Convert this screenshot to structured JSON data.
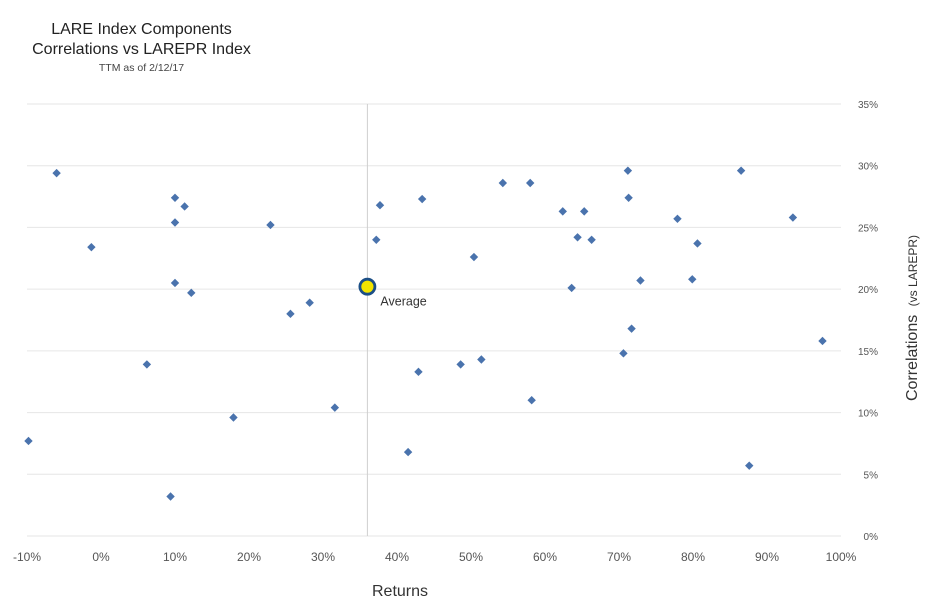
{
  "chart_data": {
    "type": "scatter",
    "title_line1": "LARE Index Components",
    "title_line2": "Correlations vs LAREPR Index",
    "subtitle": "TTM as of 2/12/17",
    "xlabel": "Returns",
    "ylabel_main": "Correlations",
    "ylabel_sub": "(vs LAREPR)",
    "xlim": [
      -10,
      100
    ],
    "ylim": [
      0,
      35
    ],
    "xticks": [
      "-10%",
      "0%",
      "10%",
      "20%",
      "30%",
      "40%",
      "50%",
      "60%",
      "70%",
      "80%",
      "90%",
      "100%"
    ],
    "yticks": [
      "0%",
      "5%",
      "10%",
      "15%",
      "20%",
      "25%",
      "30%",
      "35%"
    ],
    "grid": "horizontal",
    "marker_color": "#4a73ad",
    "average": {
      "label": "Average",
      "x": 36,
      "y": 20.2,
      "fill": "#f2e400",
      "stroke": "#1c4f86"
    },
    "points": [
      {
        "x": -9.8,
        "y": 7.7
      },
      {
        "x": -6,
        "y": 29.4
      },
      {
        "x": -1.3,
        "y": 23.4
      },
      {
        "x": 6.2,
        "y": 13.9
      },
      {
        "x": 9.4,
        "y": 3.2
      },
      {
        "x": 10,
        "y": 27.4
      },
      {
        "x": 10,
        "y": 25.4
      },
      {
        "x": 10,
        "y": 20.5
      },
      {
        "x": 11.3,
        "y": 26.7
      },
      {
        "x": 12.2,
        "y": 19.7
      },
      {
        "x": 17.9,
        "y": 9.6
      },
      {
        "x": 22.9,
        "y": 25.2
      },
      {
        "x": 25.6,
        "y": 18
      },
      {
        "x": 28.2,
        "y": 18.9
      },
      {
        "x": 31.6,
        "y": 10.4
      },
      {
        "x": 37.2,
        "y": 24
      },
      {
        "x": 37.7,
        "y": 26.8
      },
      {
        "x": 41.5,
        "y": 6.8
      },
      {
        "x": 42.9,
        "y": 13.3
      },
      {
        "x": 43.4,
        "y": 27.3
      },
      {
        "x": 48.6,
        "y": 13.9
      },
      {
        "x": 50.4,
        "y": 22.6
      },
      {
        "x": 51.4,
        "y": 14.3
      },
      {
        "x": 54.3,
        "y": 28.6
      },
      {
        "x": 58,
        "y": 28.6
      },
      {
        "x": 58.2,
        "y": 11
      },
      {
        "x": 62.4,
        "y": 26.3
      },
      {
        "x": 63.6,
        "y": 20.1
      },
      {
        "x": 64.4,
        "y": 24.2
      },
      {
        "x": 65.3,
        "y": 26.3
      },
      {
        "x": 66.3,
        "y": 24
      },
      {
        "x": 70.6,
        "y": 14.8
      },
      {
        "x": 71.2,
        "y": 29.6
      },
      {
        "x": 71.3,
        "y": 27.4
      },
      {
        "x": 71.7,
        "y": 16.8
      },
      {
        "x": 72.9,
        "y": 20.7
      },
      {
        "x": 77.9,
        "y": 25.7
      },
      {
        "x": 79.9,
        "y": 20.8
      },
      {
        "x": 80.6,
        "y": 23.7
      },
      {
        "x": 86.5,
        "y": 29.6
      },
      {
        "x": 87.6,
        "y": 5.7
      },
      {
        "x": 93.5,
        "y": 25.8
      },
      {
        "x": 97.5,
        "y": 15.8
      }
    ]
  }
}
